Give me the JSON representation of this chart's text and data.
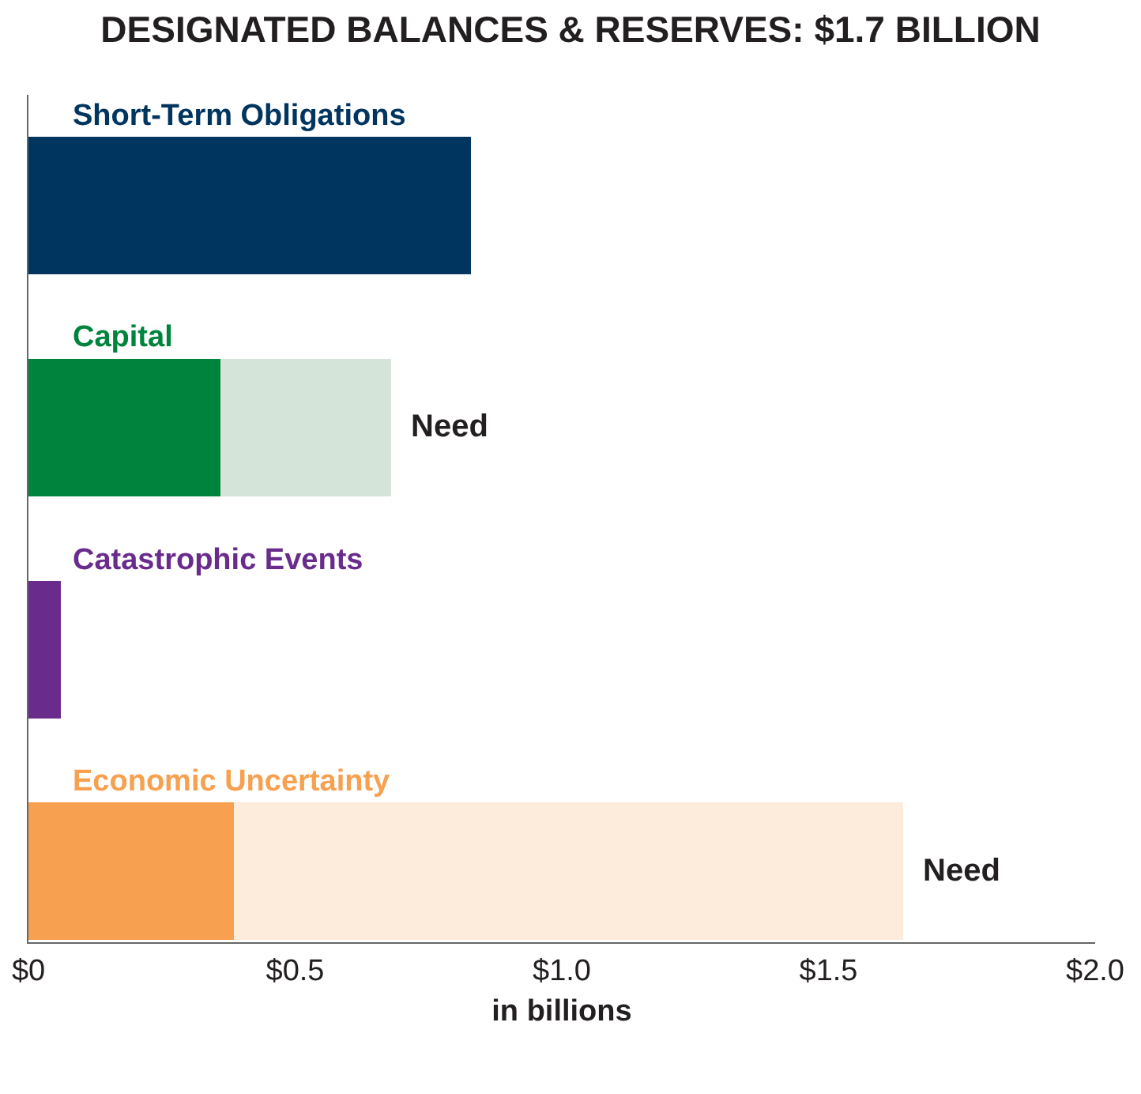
{
  "chart_data": {
    "type": "bar",
    "orientation": "horizontal",
    "stacked": true,
    "title": "DESIGNATED BALANCES & RESERVES: $1.7 BILLION",
    "xlabel": "in billions",
    "categories": [
      "Short-Term Obligations",
      "Capital",
      "Catastrophic Events",
      "Economic Uncertainty"
    ],
    "series": [
      {
        "colors": [
          "#003560",
          "#00843d",
          "#6a2c8c",
          "#f7a04f"
        ],
        "values": [
          0.83,
          0.36,
          0.06,
          0.385
        ]
      },
      {
        "colors": [
          "#d4e4d8",
          "#d4e4d8",
          "#fdebdc",
          "#fdebdc"
        ],
        "values": [
          null,
          0.32,
          null,
          1.255
        ]
      }
    ],
    "xlim": [
      0,
      2
    ],
    "xticks": [
      {
        "value": 0,
        "label": "$0"
      },
      {
        "value": 0.5,
        "label": "$0.5"
      },
      {
        "value": 1,
        "label": "$1.0"
      },
      {
        "value": 1.5,
        "label": "$1.5"
      },
      {
        "value": 2,
        "label": "$2.0"
      }
    ],
    "grid": false,
    "tick_labels": "x",
    "annotations": [
      {
        "text": "Need",
        "x": 0.68,
        "y": "Capital"
      },
      {
        "text": "Need",
        "x": 1.64,
        "y": "Economic Uncertainty"
      }
    ]
  }
}
